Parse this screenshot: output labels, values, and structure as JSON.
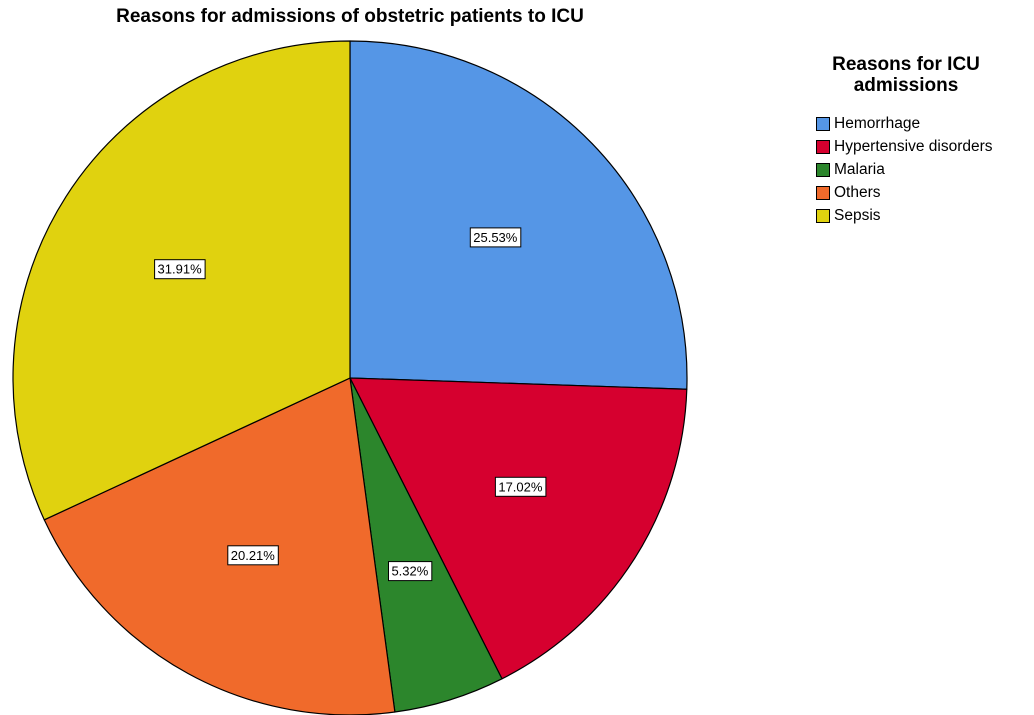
{
  "chart_data": {
    "type": "pie",
    "title": "Reasons for admissions of obstetric patients to ICU",
    "legend_title": "Reasons for ICU admissions",
    "legend_position": "right",
    "start_angle_deg": 0,
    "direction": "clockwise",
    "slices": [
      {
        "name": "Hemorrhage",
        "value": 25.53,
        "label": "25.53%",
        "color": "#5596e6"
      },
      {
        "name": "Hypertensive disorders",
        "value": 17.02,
        "label": "17.02%",
        "color": "#d6002f"
      },
      {
        "name": "Malaria",
        "value": 5.32,
        "label": "5.32%",
        "color": "#2c862c"
      },
      {
        "name": "Others",
        "value": 20.21,
        "label": "20.21%",
        "color": "#f06a2b"
      },
      {
        "name": "Sepsis",
        "value": 31.91,
        "label": "31.91%",
        "color": "#e0d20f"
      }
    ]
  }
}
